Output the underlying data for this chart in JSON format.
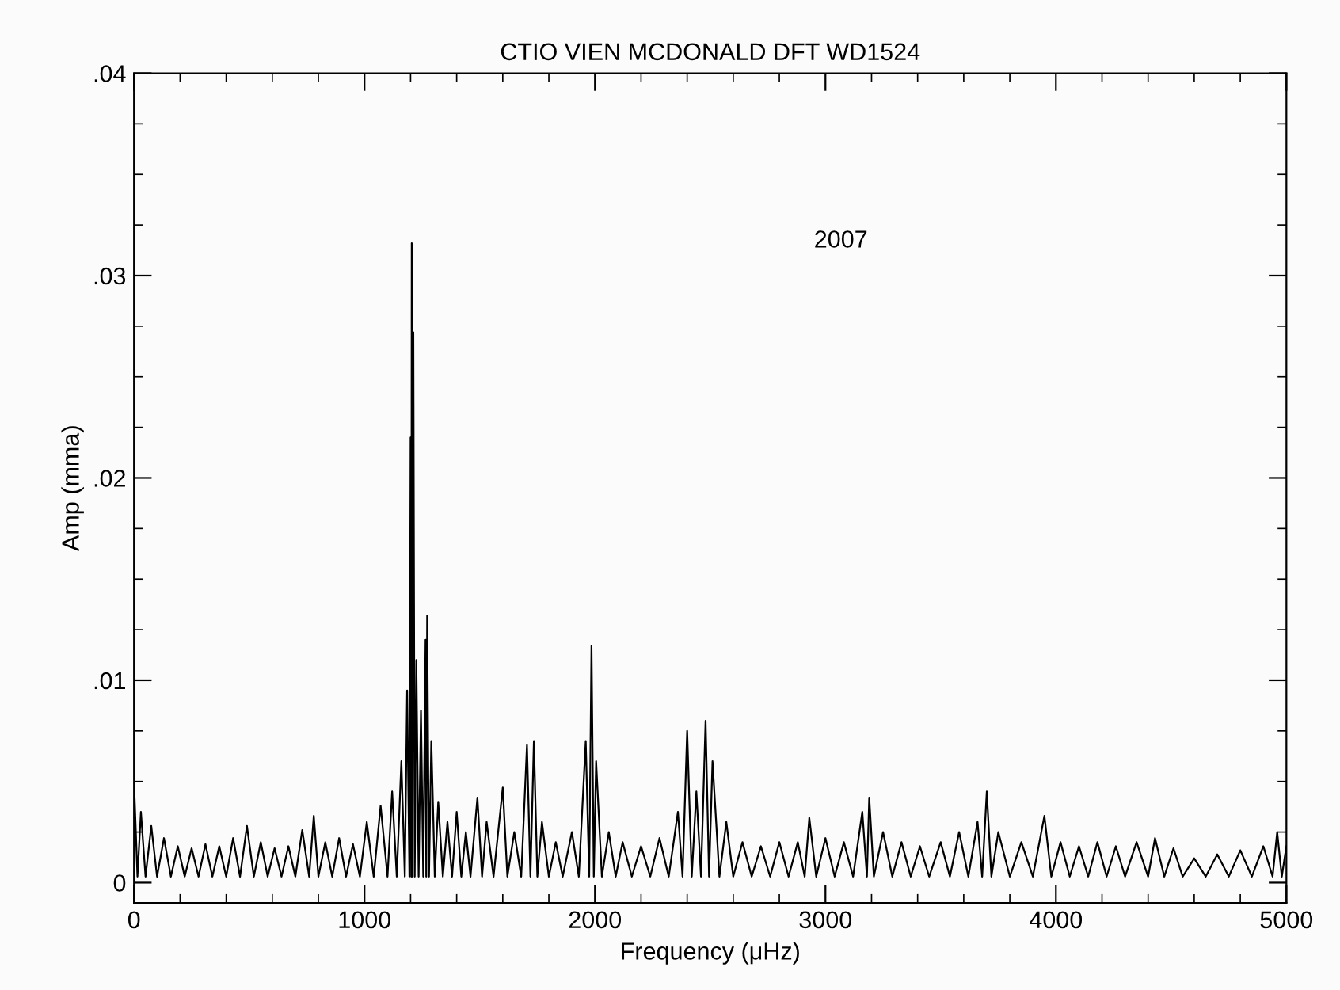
{
  "chart_data": {
    "type": "line",
    "title": "CTIO VIEN MCDONALD DFT WD1524",
    "xlabel": "Frequency (μHz)",
    "ylabel": "Amp (mma)",
    "annotations": [
      "2007"
    ],
    "xlim": [
      0,
      5000
    ],
    "ylim": [
      -0.001,
      0.04
    ],
    "xticks": [
      0,
      {
        "value": 200,
        "label": null
      },
      {
        "value": 400,
        "label": null
      },
      {
        "value": 600,
        "label": null
      },
      {
        "value": 800,
        "label": null
      },
      1000,
      {
        "value": 1200,
        "label": null
      },
      {
        "value": 1400,
        "label": null
      },
      {
        "value": 1600,
        "label": null
      },
      {
        "value": 1800,
        "label": null
      },
      2000,
      {
        "value": 2200,
        "label": null
      },
      {
        "value": 2400,
        "label": null
      },
      {
        "value": 2600,
        "label": null
      },
      {
        "value": 2800,
        "label": null
      },
      3000,
      {
        "value": 3200,
        "label": null
      },
      {
        "value": 3400,
        "label": null
      },
      {
        "value": 3600,
        "label": null
      },
      {
        "value": 3800,
        "label": null
      },
      4000,
      {
        "value": 4200,
        "label": null
      },
      {
        "value": 4400,
        "label": null
      },
      {
        "value": 4600,
        "label": null
      },
      {
        "value": 4800,
        "label": null
      },
      5000
    ],
    "yticks": [
      0,
      {
        "value": 0.0025,
        "label": null
      },
      {
        "value": 0.005,
        "label": null
      },
      {
        "value": 0.0075,
        "label": null
      },
      {
        "value": 0.01,
        "label": ".01"
      },
      {
        "value": 0.0125,
        "label": null
      },
      {
        "value": 0.015,
        "label": null
      },
      {
        "value": 0.0175,
        "label": null
      },
      {
        "value": 0.02,
        "label": ".02"
      },
      {
        "value": 0.0225,
        "label": null
      },
      {
        "value": 0.025,
        "label": null
      },
      {
        "value": 0.0275,
        "label": null
      },
      {
        "value": 0.03,
        "label": ".03"
      },
      {
        "value": 0.0325,
        "label": null
      },
      {
        "value": 0.035,
        "label": null
      },
      {
        "value": 0.0375,
        "label": null
      },
      {
        "value": 0.04,
        "label": ".04"
      }
    ],
    "grid": false,
    "legend": false,
    "marker": "none",
    "line_style": "solid",
    "series": [
      {
        "color": "#000000",
        "x": [
          0,
          15,
          30,
          50,
          75,
          100,
          130,
          160,
          190,
          220,
          250,
          280,
          310,
          340,
          370,
          400,
          430,
          460,
          490,
          520,
          550,
          580,
          610,
          640,
          670,
          700,
          730,
          760,
          780,
          800,
          830,
          860,
          890,
          920,
          950,
          980,
          1010,
          1040,
          1070,
          1100,
          1120,
          1140,
          1160,
          1175,
          1185,
          1195,
          1200,
          1203,
          1205,
          1208,
          1212,
          1218,
          1225,
          1235,
          1245,
          1255,
          1265,
          1268,
          1272,
          1280,
          1290,
          1305,
          1320,
          1340,
          1360,
          1380,
          1400,
          1420,
          1440,
          1460,
          1490,
          1510,
          1530,
          1560,
          1600,
          1620,
          1650,
          1680,
          1705,
          1720,
          1735,
          1750,
          1770,
          1800,
          1830,
          1860,
          1900,
          1930,
          1960,
          1975,
          1985,
          1995,
          2005,
          2030,
          2060,
          2090,
          2120,
          2160,
          2200,
          2240,
          2280,
          2320,
          2360,
          2380,
          2400,
          2420,
          2440,
          2460,
          2480,
          2495,
          2510,
          2540,
          2570,
          2600,
          2640,
          2680,
          2720,
          2760,
          2800,
          2840,
          2880,
          2910,
          2930,
          2960,
          3000,
          3040,
          3080,
          3120,
          3160,
          3180,
          3190,
          3210,
          3250,
          3290,
          3330,
          3370,
          3410,
          3450,
          3500,
          3540,
          3580,
          3620,
          3660,
          3680,
          3700,
          3720,
          3750,
          3800,
          3850,
          3900,
          3950,
          3980,
          4020,
          4060,
          4100,
          4140,
          4180,
          4220,
          4260,
          4300,
          4350,
          4400,
          4430,
          4470,
          4510,
          4550,
          4600,
          4650,
          4700,
          4750,
          4800,
          4850,
          4900,
          4940,
          4960,
          4980,
          5000
        ],
        "values": [
          0.005,
          0.0003,
          0.0035,
          0.0003,
          0.0028,
          0.0003,
          0.0022,
          0.0003,
          0.0018,
          0.0003,
          0.0017,
          0.0003,
          0.0019,
          0.0003,
          0.0018,
          0.0003,
          0.0022,
          0.0003,
          0.0028,
          0.0003,
          0.002,
          0.0003,
          0.0017,
          0.0003,
          0.0018,
          0.0003,
          0.0026,
          0.0003,
          0.0033,
          0.0003,
          0.002,
          0.0003,
          0.0022,
          0.0003,
          0.0019,
          0.0003,
          0.003,
          0.0003,
          0.0038,
          0.0003,
          0.0045,
          0.0003,
          0.006,
          0.0003,
          0.0095,
          0.0003,
          0.022,
          0.0003,
          0.0316,
          0.0003,
          0.0272,
          0.0003,
          0.011,
          0.0003,
          0.0085,
          0.0003,
          0.012,
          0.0003,
          0.0132,
          0.0003,
          0.007,
          0.0003,
          0.004,
          0.0003,
          0.003,
          0.0003,
          0.0035,
          0.0003,
          0.0025,
          0.0003,
          0.0042,
          0.0003,
          0.003,
          0.0003,
          0.0047,
          0.0003,
          0.0025,
          0.0003,
          0.0068,
          0.0003,
          0.007,
          0.0003,
          0.003,
          0.0003,
          0.002,
          0.0003,
          0.0025,
          0.0003,
          0.007,
          0.0003,
          0.0117,
          0.0003,
          0.006,
          0.0003,
          0.0025,
          0.0003,
          0.002,
          0.0003,
          0.0018,
          0.0003,
          0.0022,
          0.0003,
          0.0035,
          0.0003,
          0.0075,
          0.0003,
          0.0045,
          0.0003,
          0.008,
          0.0003,
          0.006,
          0.0003,
          0.003,
          0.0003,
          0.002,
          0.0003,
          0.0018,
          0.0003,
          0.002,
          0.0003,
          0.002,
          0.0003,
          0.0032,
          0.0003,
          0.0022,
          0.0003,
          0.002,
          0.0003,
          0.0035,
          0.0003,
          0.0042,
          0.0003,
          0.0025,
          0.0003,
          0.002,
          0.0003,
          0.0018,
          0.0003,
          0.002,
          0.0003,
          0.0025,
          0.0003,
          0.003,
          0.0003,
          0.0045,
          0.0003,
          0.0025,
          0.0003,
          0.002,
          0.0003,
          0.0033,
          0.0003,
          0.002,
          0.0003,
          0.0018,
          0.0003,
          0.002,
          0.0003,
          0.0018,
          0.0003,
          0.002,
          0.0003,
          0.0022,
          0.0003,
          0.0017,
          0.0003,
          0.0012,
          0.0003,
          0.0014,
          0.0003,
          0.0016,
          0.0003,
          0.0018,
          0.0003,
          0.0025,
          0.0003,
          0.0018
        ]
      }
    ]
  }
}
